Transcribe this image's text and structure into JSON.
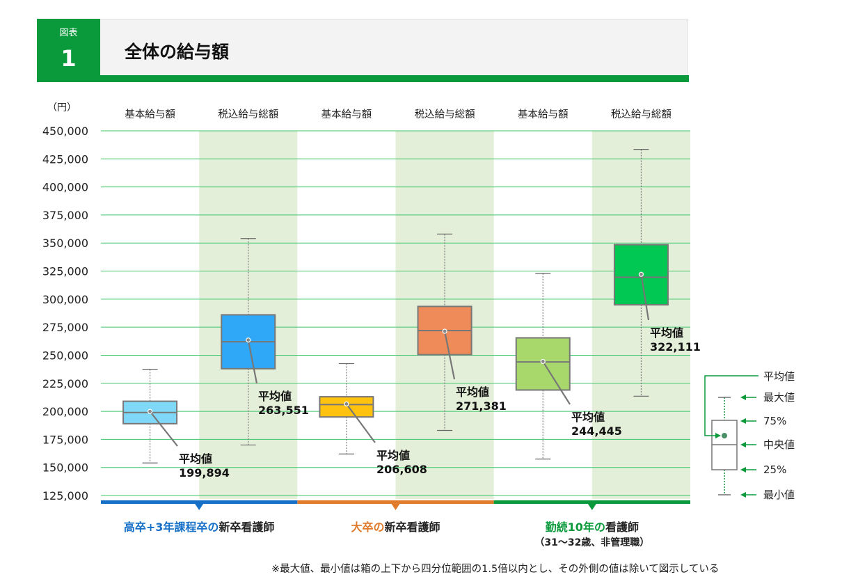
{
  "header": {
    "figure_label": "図表",
    "figure_number": "1",
    "title": "全体の給与額"
  },
  "chart_data": {
    "type": "boxplot",
    "unit_label": "（円）",
    "ylim": [
      125000,
      450000
    ],
    "y_ticks": [
      450000,
      425000,
      400000,
      375000,
      350000,
      325000,
      300000,
      275000,
      250000,
      225000,
      200000,
      175000,
      150000,
      125000
    ],
    "y_tick_labels": [
      "450,000",
      "425,000",
      "400,000",
      "375,000",
      "350,000",
      "325,000",
      "300,000",
      "275,000",
      "250,000",
      "225,000",
      "200,000",
      "175,000",
      "150,000",
      "125,000"
    ],
    "categories": [
      "基本給与額",
      "税込給与総額",
      "基本給与額",
      "税込給与総額",
      "基本給与額",
      "税込給与総額"
    ],
    "boxes": [
      {
        "category": "基本給与額",
        "min": 154000,
        "q1": 189000,
        "median": 199000,
        "q3": 209000,
        "max": 237500,
        "mean": 199894,
        "mean_label": "平均値",
        "mean_text": "199,894",
        "color": "#7fd8f7"
      },
      {
        "category": "税込給与総額",
        "min": 170000,
        "q1": 238000,
        "median": 262000,
        "q3": 286000,
        "max": 354000,
        "mean": 263551,
        "mean_label": "平均値",
        "mean_text": "263,551",
        "color": "#2ea8f7"
      },
      {
        "category": "基本給与額",
        "min": 162000,
        "q1": 195000,
        "median": 206000,
        "q3": 213000,
        "max": 242500,
        "mean": 206608,
        "mean_label": "平均値",
        "mean_text": "206,608",
        "color": "#ffc20e"
      },
      {
        "category": "税込給与総額",
        "min": 183000,
        "q1": 250500,
        "median": 272000,
        "q3": 293500,
        "max": 358000,
        "mean": 271381,
        "mean_label": "平均値",
        "mean_text": "271,381",
        "color": "#ee8b58"
      },
      {
        "category": "基本給与額",
        "min": 157500,
        "q1": 219000,
        "median": 244000,
        "q3": 265500,
        "max": 323000,
        "mean": 244445,
        "mean_label": "平均値",
        "mean_text": "244,445",
        "color": "#a8d86c"
      },
      {
        "category": "税込給与総額",
        "min": 213500,
        "q1": 295000,
        "median": 319500,
        "q3": 348500,
        "max": 433500,
        "mean": 322111,
        "mean_label": "平均値",
        "mean_text": "322,111",
        "color": "#00c853"
      }
    ],
    "groups": [
      {
        "label_colored": "高卒+3年課程卒の",
        "label_rest": "新卒看護師",
        "sub": "",
        "color": "#1770c8"
      },
      {
        "label_colored": "大卒の",
        "label_rest": "新卒看護師",
        "sub": "",
        "color": "#e07b2c"
      },
      {
        "label_colored": "勤続10年の",
        "label_rest": "看護師",
        "sub": "（31～32歳、非管理職）",
        "color": "#0a9a3c"
      }
    ],
    "legend": {
      "mean": "平均値",
      "max": "最大値",
      "q3": "75%",
      "median": "中央値",
      "q1": "25%",
      "min": "最小値"
    },
    "grid_color": "#3cc56a",
    "band_color": "#e4efd9"
  },
  "footnote": "※最大値、最小値は箱の上下から四分位範囲の1.5倍以内とし、その外側の値は除いて図示している"
}
